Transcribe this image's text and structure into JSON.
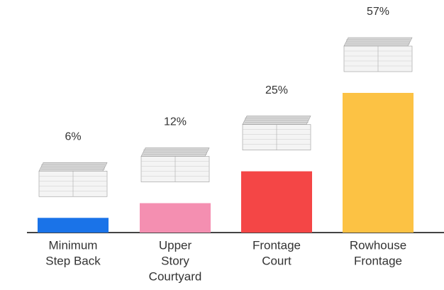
{
  "chart_data": {
    "type": "bar",
    "categories": [
      [
        "Minimum",
        "Step Back"
      ],
      [
        "Upper",
        "Story",
        "Courtyard"
      ],
      [
        "Frontage",
        "Court"
      ],
      [
        "Rowhouse",
        "Frontage"
      ]
    ],
    "values": [
      6,
      12,
      25,
      57
    ],
    "value_labels": [
      "6%",
      "12%",
      "25%",
      "57%"
    ],
    "colors": [
      "#1a73e8",
      "#f48fb1",
      "#f44646",
      "#fcc244"
    ],
    "ylim": [
      0,
      57
    ]
  }
}
